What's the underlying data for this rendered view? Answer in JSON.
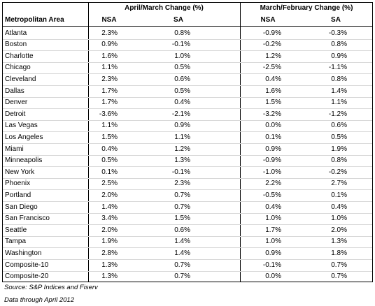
{
  "table": {
    "group_headers": [
      "April/March Change (%)",
      "March/February Change (%)"
    ],
    "columns": [
      "Metropolitan Area",
      "NSA",
      "SA",
      "NSA",
      "SA"
    ],
    "rows": [
      [
        "Atlanta",
        "2.3%",
        "0.8%",
        "-0.9%",
        "-0.3%"
      ],
      [
        "Boston",
        "0.9%",
        "-0.1%",
        "-0.2%",
        "0.8%"
      ],
      [
        "Charlotte",
        "1.6%",
        "1.0%",
        "1.2%",
        "0.9%"
      ],
      [
        "Chicago",
        "1.1%",
        "0.5%",
        "-2.5%",
        "-1.1%"
      ],
      [
        "Cleveland",
        "2.3%",
        "0.6%",
        "0.4%",
        "0.8%"
      ],
      [
        "Dallas",
        "1.7%",
        "0.5%",
        "1.6%",
        "1.4%"
      ],
      [
        "Denver",
        "1.7%",
        "0.4%",
        "1.5%",
        "1.1%"
      ],
      [
        "Detroit",
        "-3.6%",
        "-2.1%",
        "-3.2%",
        "-1.2%"
      ],
      [
        "Las Vegas",
        "1.1%",
        "0.9%",
        "0.0%",
        "0.6%"
      ],
      [
        "Los Angeles",
        "1.5%",
        "1.1%",
        "0.1%",
        "0.5%"
      ],
      [
        "Miami",
        "0.4%",
        "1.2%",
        "0.9%",
        "1.9%"
      ],
      [
        "Minneapolis",
        "0.5%",
        "1.3%",
        "-0.9%",
        "0.8%"
      ],
      [
        "New York",
        "0.1%",
        "-0.1%",
        "-1.0%",
        "-0.2%"
      ],
      [
        "Phoenix",
        "2.5%",
        "2.3%",
        "2.2%",
        "2.7%"
      ],
      [
        "Portland",
        "2.0%",
        "0.7%",
        "-0.5%",
        "0.1%"
      ],
      [
        "San Diego",
        "1.4%",
        "0.7%",
        "0.4%",
        "0.4%"
      ],
      [
        "San Francisco",
        "3.4%",
        "1.5%",
        "1.0%",
        "1.0%"
      ],
      [
        "Seattle",
        "2.0%",
        "0.6%",
        "1.7%",
        "2.0%"
      ],
      [
        "Tampa",
        "1.9%",
        "1.4%",
        "1.0%",
        "1.3%"
      ],
      [
        "Washington",
        "2.8%",
        "1.4%",
        "0.9%",
        "1.8%"
      ],
      [
        "Composite-10",
        "1.3%",
        "0.7%",
        "-0.1%",
        "0.7%"
      ],
      [
        "Composite-20",
        "1.3%",
        "0.7%",
        "0.0%",
        "0.7%"
      ]
    ]
  },
  "notes": [
    "Source: S&P Indices and Fiserv",
    "Data through April 2012"
  ]
}
